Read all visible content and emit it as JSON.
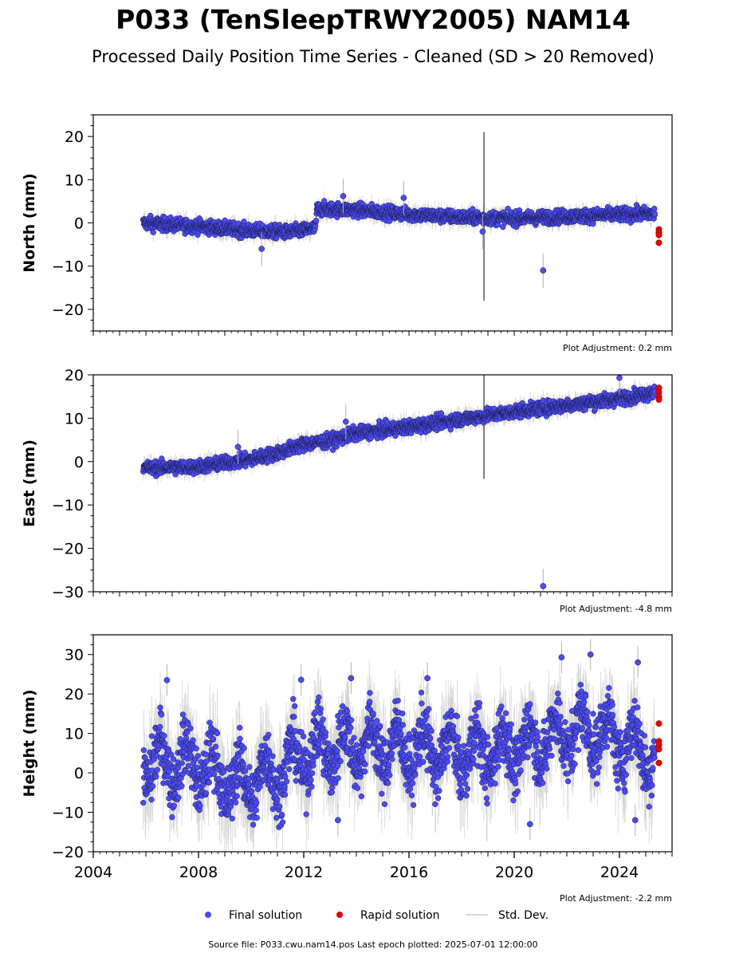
{
  "title": "P033 (TenSleepTRWY2005) NAM14",
  "subtitle": "Processed Daily Position Time Series - Cleaned (SD > 20 Removed)",
  "colors": {
    "final": "#4b4bf5",
    "final_edge": "#1a1a40",
    "rapid": "#e30000",
    "stddev": "#b0b0b0",
    "offset": "#555555"
  },
  "legend": {
    "final": "Final solution",
    "rapid": "Rapid solution",
    "stddev": "Std. Dev."
  },
  "footer": "Source file: P033.cwu.nam14.pos  Last epoch plotted: 2025-07-01 12:00:00",
  "chart_data": [
    {
      "type": "scatter",
      "panel": "north",
      "ylabel": "North (mm)",
      "ylim": [
        -25,
        25
      ],
      "yticks": [
        -20,
        -10,
        0,
        10,
        20
      ],
      "xlim": [
        2004,
        2026
      ],
      "adjustment": "Plot Adjustment: 0.2 mm",
      "trend": [
        [
          2005.9,
          0
        ],
        [
          2008,
          -0.8
        ],
        [
          2010,
          -1.8
        ],
        [
          2011.5,
          -2.2
        ],
        [
          2012.45,
          -1.2
        ],
        [
          2012.5,
          3.2
        ],
        [
          2014,
          3.0
        ],
        [
          2016,
          2.0
        ],
        [
          2018,
          1.3
        ],
        [
          2020,
          1.0
        ],
        [
          2022,
          1.5
        ],
        [
          2024,
          1.9
        ],
        [
          2025.3,
          2.1
        ]
      ],
      "noise": 1.3,
      "outliers": [
        [
          2010.4,
          -6
        ],
        [
          2013.5,
          6.2
        ],
        [
          2015.8,
          5.8
        ],
        [
          2018.8,
          -2
        ],
        [
          2021.1,
          -11
        ]
      ],
      "rapid": [
        [
          2025.5,
          -1.5
        ],
        [
          2025.5,
          -2.2
        ],
        [
          2025.5,
          -2.8
        ],
        [
          2025.5,
          -4.6
        ]
      ],
      "spike": {
        "x": 2018.85,
        "low": -18,
        "high": 21
      }
    },
    {
      "type": "scatter",
      "panel": "east",
      "ylabel": "East (mm)",
      "ylim": [
        -30,
        20
      ],
      "yticks": [
        -30,
        -20,
        -10,
        0,
        10,
        20
      ],
      "xlim": [
        2004,
        2026
      ],
      "adjustment": "Plot Adjustment: -4.8 mm",
      "trend": [
        [
          2005.9,
          -1.5
        ],
        [
          2008,
          -1.2
        ],
        [
          2010,
          0.5
        ],
        [
          2011,
          2.0
        ],
        [
          2012,
          4.0
        ],
        [
          2013,
          4.8
        ],
        [
          2014,
          6.5
        ],
        [
          2016,
          8.0
        ],
        [
          2018,
          9.8
        ],
        [
          2020,
          11.5
        ],
        [
          2022,
          13.0
        ],
        [
          2024,
          14.5
        ],
        [
          2025.3,
          16.0
        ]
      ],
      "noise": 1.3,
      "outliers": [
        [
          2009.5,
          3.4
        ],
        [
          2013.6,
          9.2
        ],
        [
          2021.1,
          -28.7
        ],
        [
          2024.0,
          19.3
        ]
      ],
      "rapid": [
        [
          2025.5,
          17
        ],
        [
          2025.5,
          16
        ],
        [
          2025.5,
          15
        ],
        [
          2025.5,
          14.3
        ]
      ],
      "spike": {
        "x": 2018.85,
        "low": -4,
        "high": 20
      }
    },
    {
      "type": "scatter",
      "panel": "height",
      "ylabel": "Height (mm)",
      "ylim": [
        -20,
        35
      ],
      "yticks": [
        -20,
        -10,
        0,
        10,
        20,
        30
      ],
      "xlim": [
        2004,
        2026
      ],
      "xticks": [
        2004,
        2008,
        2012,
        2016,
        2020,
        2024
      ],
      "adjustment": "Plot Adjustment: -2.2 mm",
      "trend": [
        [
          2005.9,
          3
        ],
        [
          2008,
          2
        ],
        [
          2009.5,
          -3
        ],
        [
          2011,
          0
        ],
        [
          2012,
          5
        ],
        [
          2014,
          7
        ],
        [
          2016,
          6
        ],
        [
          2018,
          5
        ],
        [
          2020,
          6
        ],
        [
          2022,
          10
        ],
        [
          2023,
          11
        ],
        [
          2024,
          8
        ],
        [
          2025.3,
          5
        ]
      ],
      "noise": 6.5,
      "seasonal": 5.5,
      "outliers": [
        [
          2006.8,
          23.5
        ],
        [
          2011.9,
          23.6
        ],
        [
          2013.8,
          24
        ],
        [
          2016.7,
          24
        ],
        [
          2020.6,
          -13
        ],
        [
          2021.8,
          29.3
        ],
        [
          2022.9,
          30
        ],
        [
          2024.7,
          28
        ],
        [
          2013.3,
          -12
        ],
        [
          2024.6,
          -12
        ]
      ],
      "rapid": [
        [
          2025.5,
          12.5
        ],
        [
          2025.5,
          8
        ],
        [
          2025.5,
          7
        ],
        [
          2025.5,
          6
        ],
        [
          2025.5,
          2.5
        ]
      ],
      "spike": null
    }
  ]
}
